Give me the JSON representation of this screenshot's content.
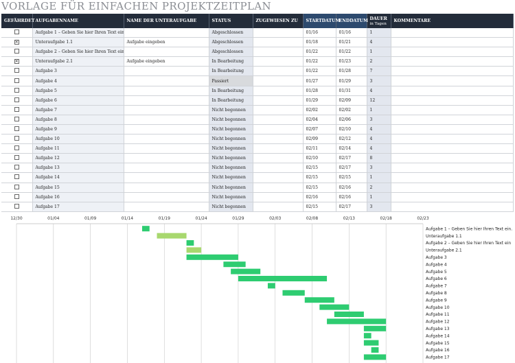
{
  "title": "VORLAGE FÜR EINFACHEN PROJEKTZEITPLAN",
  "headers": {
    "at_risk": "GEFÄHRDET",
    "task": "AUFGABENNAME",
    "subtask": "NAME DER UNTERAUFGABE",
    "status": "STATUS",
    "assigned": "ZUGEWIESEN ZU",
    "start": "STARTDATUM",
    "end": "ENDDATUM",
    "duration": "DAUER",
    "duration_unit": "in Tagen",
    "comments": "KOMMENTARE"
  },
  "rows": [
    {
      "at_risk": false,
      "task": "Aufgabe 1 – Geben Sie hier Ihren Text ein.",
      "subtask": "",
      "status": "Abgeschlossen",
      "assigned": "",
      "start": "01/16",
      "end": "01/16",
      "duration": "1",
      "comments": ""
    },
    {
      "at_risk": true,
      "task": "Unteraufgabe 1.1",
      "subtask": "Aufgabe eingeben",
      "status": "Abgeschlossen",
      "assigned": "",
      "start": "01/18",
      "end": "01/21",
      "duration": "4",
      "comments": ""
    },
    {
      "at_risk": false,
      "task": "Aufgabe 2 – Geben Sie hier Ihren Text ein",
      "subtask": "",
      "status": "Abgeschlossen",
      "assigned": "",
      "start": "01/22",
      "end": "01/22",
      "duration": "1",
      "comments": ""
    },
    {
      "at_risk": true,
      "task": "Unteraufgabe 2.1",
      "subtask": "Aufgabe eingeben",
      "status": "In Bearbeitung",
      "assigned": "",
      "start": "01/22",
      "end": "01/23",
      "duration": "2",
      "comments": ""
    },
    {
      "at_risk": false,
      "task": "Aufgabe 3",
      "subtask": "",
      "status": "In Bearbeitung",
      "assigned": "",
      "start": "01/22",
      "end": "01/28",
      "duration": "7",
      "comments": ""
    },
    {
      "at_risk": false,
      "task": "Aufgabe 4",
      "subtask": "",
      "status": "Passiert",
      "assigned": "",
      "start": "01/27",
      "end": "01/29",
      "duration": "3",
      "comments": ""
    },
    {
      "at_risk": false,
      "task": "Aufgabe 5",
      "subtask": "",
      "status": "In Bearbeitung",
      "assigned": "",
      "start": "01/28",
      "end": "01/31",
      "duration": "4",
      "comments": ""
    },
    {
      "at_risk": false,
      "task": "Aufgabe 6",
      "subtask": "",
      "status": "In Bearbeitung",
      "assigned": "",
      "start": "01/29",
      "end": "02/09",
      "duration": "12",
      "comments": ""
    },
    {
      "at_risk": false,
      "task": "Aufgabe 7",
      "subtask": "",
      "status": "Nicht begonnen",
      "assigned": "",
      "start": "02/02",
      "end": "02/02",
      "duration": "1",
      "comments": ""
    },
    {
      "at_risk": false,
      "task": "Aufgabe 8",
      "subtask": "",
      "status": "Nicht begonnen",
      "assigned": "",
      "start": "02/04",
      "end": "02/06",
      "duration": "3",
      "comments": ""
    },
    {
      "at_risk": false,
      "task": "Aufgabe 9",
      "subtask": "",
      "status": "Nicht begonnen",
      "assigned": "",
      "start": "02/07",
      "end": "02/10",
      "duration": "4",
      "comments": ""
    },
    {
      "at_risk": false,
      "task": "Aufgabe 10",
      "subtask": "",
      "status": "Nicht begonnen",
      "assigned": "",
      "start": "02/09",
      "end": "02/12",
      "duration": "4",
      "comments": ""
    },
    {
      "at_risk": false,
      "task": "Aufgabe 11",
      "subtask": "",
      "status": "Nicht begonnen",
      "assigned": "",
      "start": "02/11",
      "end": "02/14",
      "duration": "4",
      "comments": ""
    },
    {
      "at_risk": false,
      "task": "Aufgabe 12",
      "subtask": "",
      "status": "Nicht begonnen",
      "assigned": "",
      "start": "02/10",
      "end": "02/17",
      "duration": "8",
      "comments": ""
    },
    {
      "at_risk": false,
      "task": "Aufgabe 13",
      "subtask": "",
      "status": "Nicht begonnen",
      "assigned": "",
      "start": "02/15",
      "end": "02/17",
      "duration": "3",
      "comments": ""
    },
    {
      "at_risk": false,
      "task": "Aufgabe 14",
      "subtask": "",
      "status": "Nicht begonnen",
      "assigned": "",
      "start": "02/15",
      "end": "02/15",
      "duration": "1",
      "comments": ""
    },
    {
      "at_risk": false,
      "task": "Aufgabe 15",
      "subtask": "",
      "status": "Nicht begonnen",
      "assigned": "",
      "start": "02/15",
      "end": "02/16",
      "duration": "2",
      "comments": ""
    },
    {
      "at_risk": false,
      "task": "Aufgabe 16",
      "subtask": "",
      "status": "Nicht begonnen",
      "assigned": "",
      "start": "02/16",
      "end": "02/16",
      "duration": "1",
      "comments": ""
    },
    {
      "at_risk": false,
      "task": "Aufgabe 17",
      "subtask": "",
      "status": "Nicht begonnen",
      "assigned": "",
      "start": "02/15",
      "end": "02/17",
      "duration": "3",
      "comments": ""
    }
  ],
  "gantt": {
    "axis_ticks": [
      "12/30",
      "01/04",
      "01/09",
      "01/14",
      "01/19",
      "01/24",
      "01/29",
      "02/03",
      "02/08",
      "02/13",
      "02/18",
      "02/23"
    ],
    "labels": [
      "Aufgabe 1 – Geben Sie hier Ihren Text ein.",
      "Unteraufgabe 1.1",
      "Aufgabe 2 – Geben Sie hier Ihren Text ein",
      "Unteraufgabe 2.1",
      "Aufgabe 3",
      "Aufgabe 4",
      "Aufgabe 5",
      "Aufgabe 6",
      "Aufgabe 7",
      "Aufgabe 8",
      "Aufgabe 9",
      "Aufgabe 10",
      "Aufgabe 11",
      "Aufgabe 12",
      "Aufgabe 13",
      "Aufgabe 14",
      "Aufgabe 15",
      "Aufgabe 16",
      "Aufgabe 17"
    ],
    "bar_color": "#2ecc71",
    "subtask_color": "#a8d86e"
  },
  "chart_data": {
    "type": "bar",
    "orientation": "horizontal-gantt",
    "title": "",
    "xlim": [
      "12/30",
      "02/23"
    ],
    "tasks": [
      {
        "name": "Aufgabe 1 – Geben Sie hier Ihren Text ein.",
        "start": "01/16",
        "end": "01/16"
      },
      {
        "name": "Unteraufgabe 1.1",
        "start": "01/18",
        "end": "01/21"
      },
      {
        "name": "Aufgabe 2 – Geben Sie hier Ihren Text ein",
        "start": "01/22",
        "end": "01/22"
      },
      {
        "name": "Unteraufgabe 2.1",
        "start": "01/22",
        "end": "01/23"
      },
      {
        "name": "Aufgabe 3",
        "start": "01/22",
        "end": "01/28"
      },
      {
        "name": "Aufgabe 4",
        "start": "01/27",
        "end": "01/29"
      },
      {
        "name": "Aufgabe 5",
        "start": "01/28",
        "end": "01/31"
      },
      {
        "name": "Aufgabe 6",
        "start": "01/29",
        "end": "02/09"
      },
      {
        "name": "Aufgabe 7",
        "start": "02/02",
        "end": "02/02"
      },
      {
        "name": "Aufgabe 8",
        "start": "02/04",
        "end": "02/06"
      },
      {
        "name": "Aufgabe 9",
        "start": "02/07",
        "end": "02/10"
      },
      {
        "name": "Aufgabe 10",
        "start": "02/09",
        "end": "02/12"
      },
      {
        "name": "Aufgabe 11",
        "start": "02/11",
        "end": "02/14"
      },
      {
        "name": "Aufgabe 12",
        "start": "02/10",
        "end": "02/17"
      },
      {
        "name": "Aufgabe 13",
        "start": "02/15",
        "end": "02/17"
      },
      {
        "name": "Aufgabe 14",
        "start": "02/15",
        "end": "02/15"
      },
      {
        "name": "Aufgabe 15",
        "start": "02/15",
        "end": "02/16"
      },
      {
        "name": "Aufgabe 16",
        "start": "02/16",
        "end": "02/16"
      },
      {
        "name": "Aufgabe 17",
        "start": "02/15",
        "end": "02/17"
      }
    ]
  }
}
